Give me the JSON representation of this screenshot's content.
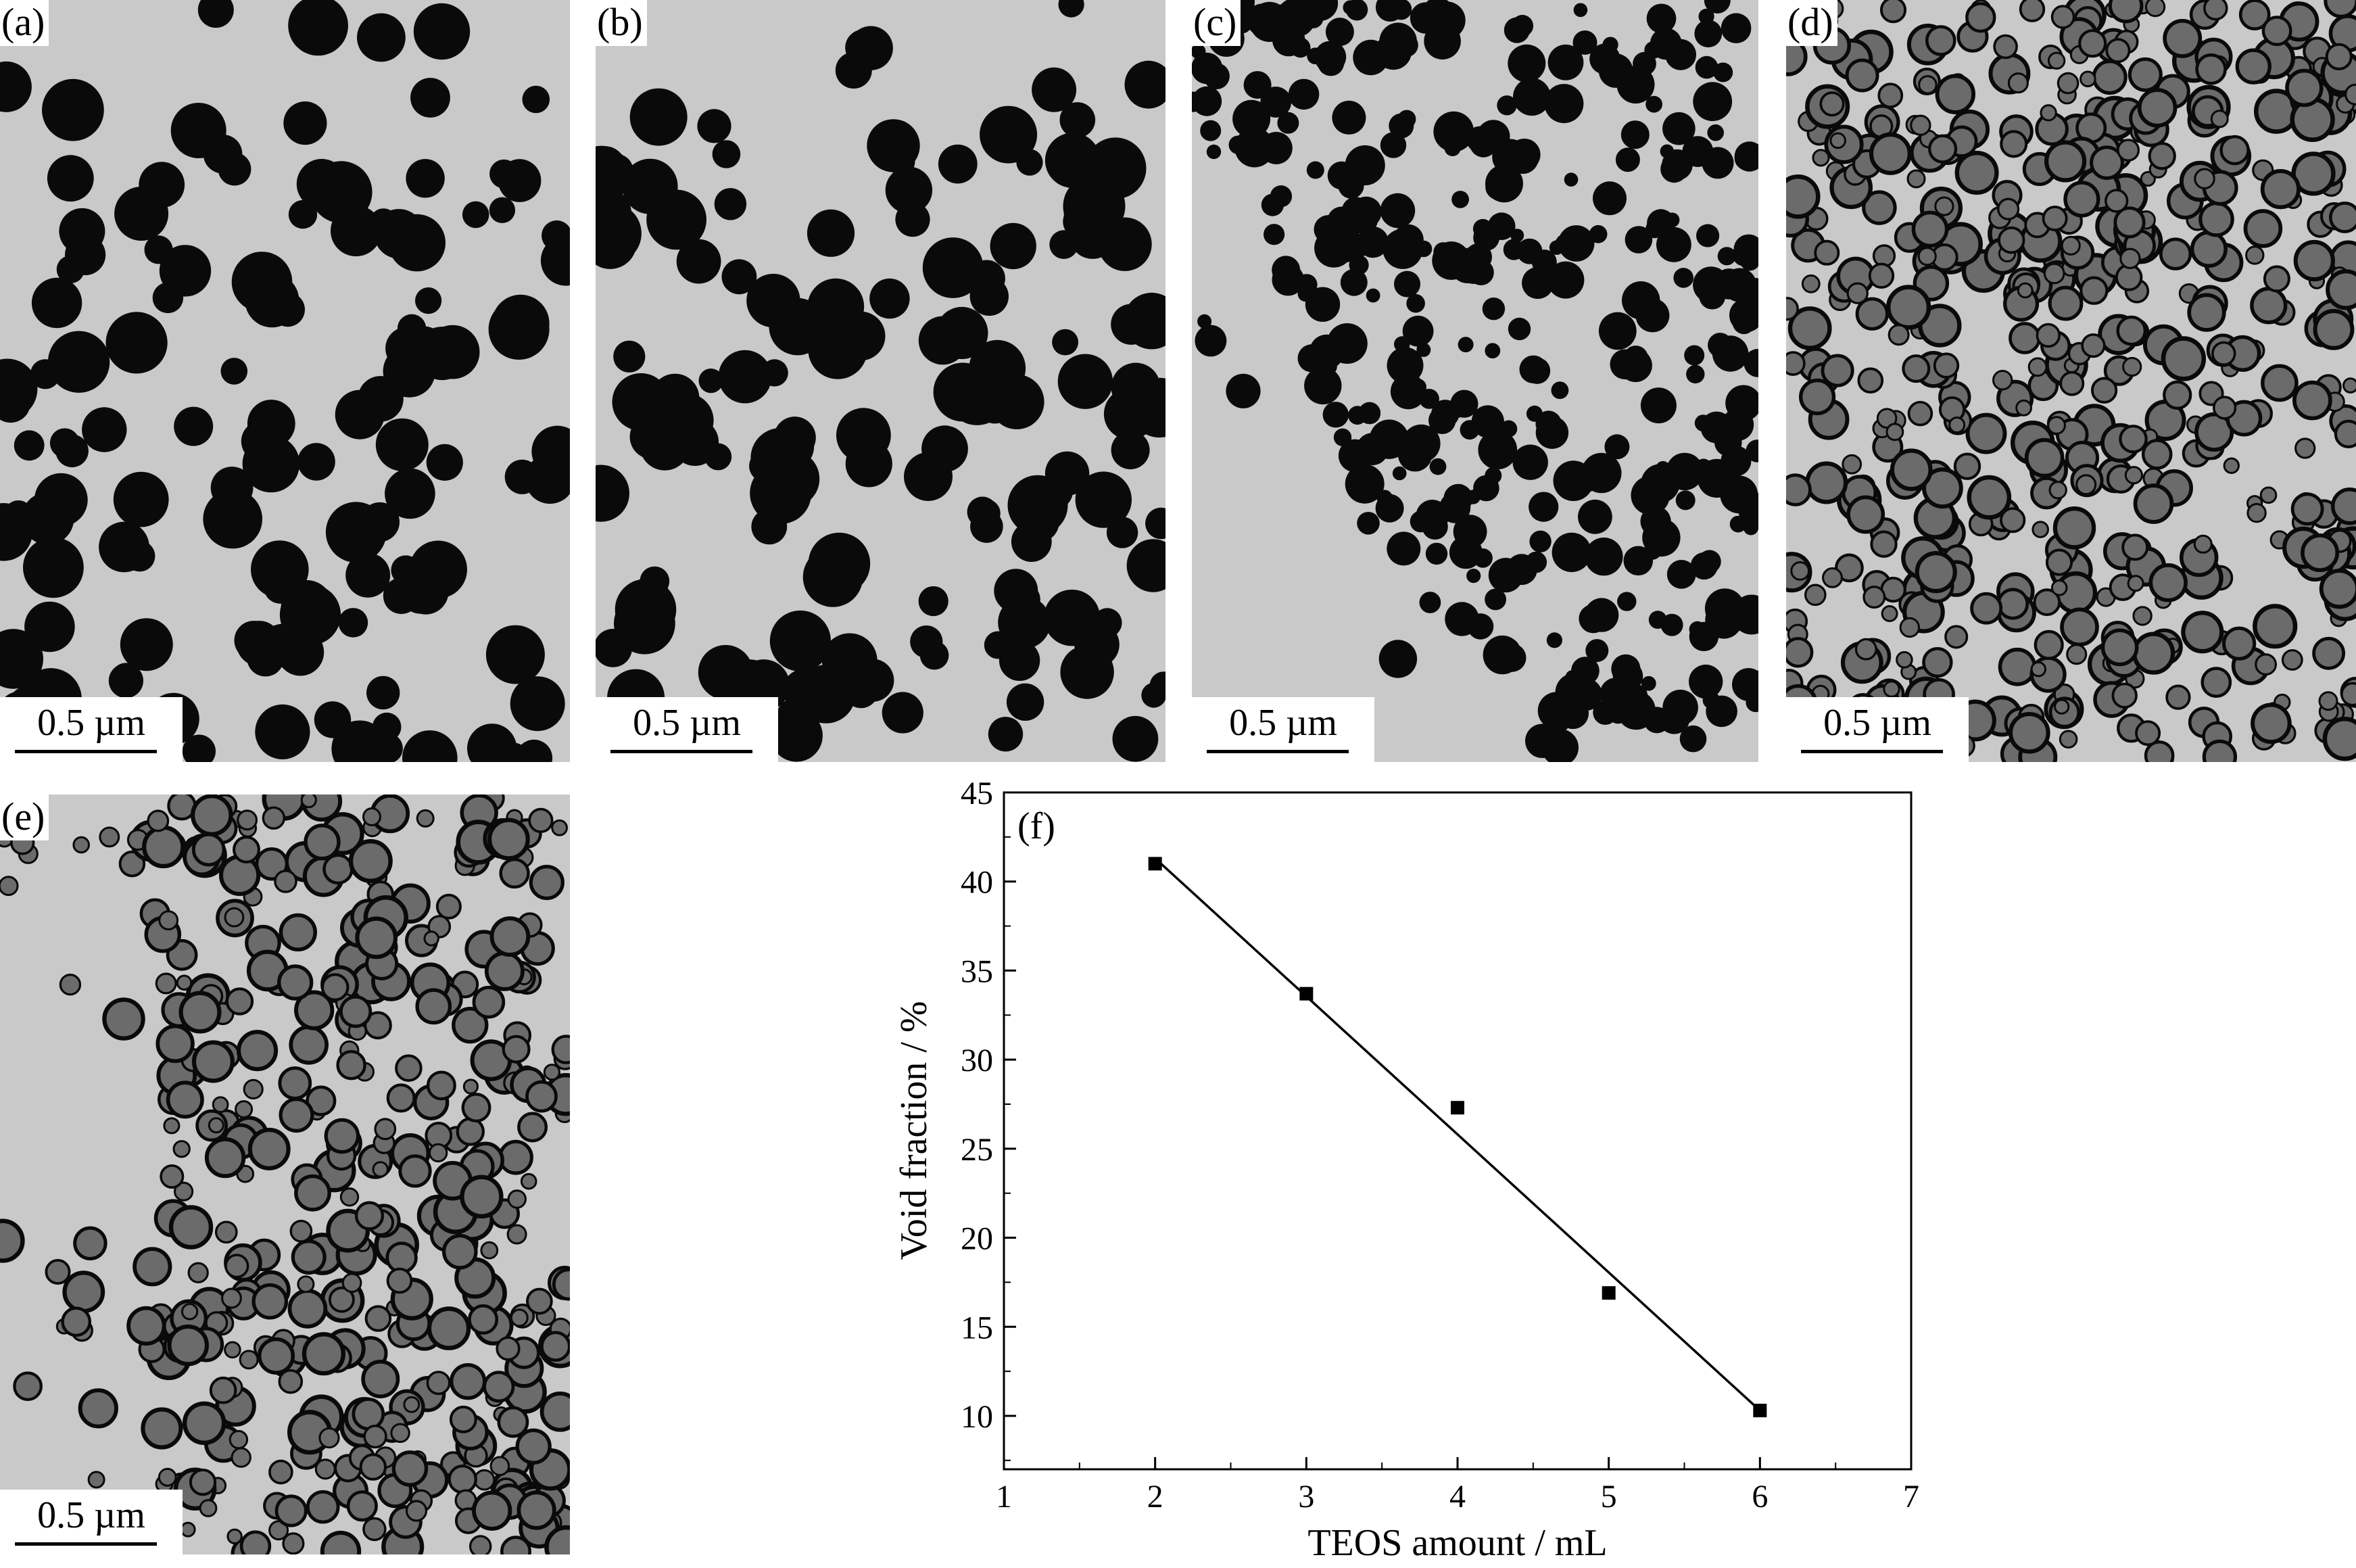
{
  "figure": {
    "panels": [
      {
        "id": "a",
        "label": "(a)",
        "scale_bar": "0.5 µm",
        "tone": "solid"
      },
      {
        "id": "b",
        "label": "(b)",
        "scale_bar": "0.5 µm",
        "tone": "solid"
      },
      {
        "id": "c",
        "label": "(c)",
        "scale_bar": "0.5 µm",
        "tone": "dense"
      },
      {
        "id": "d",
        "label": "(d)",
        "scale_bar": "0.5 µm",
        "tone": "hollow"
      },
      {
        "id": "e",
        "label": "(e)",
        "scale_bar": "0.5 µm",
        "tone": "hollow"
      }
    ],
    "colors": {
      "particle": "#0a0a0a",
      "background": "#c9c9c9",
      "hollow_center": "#6b6b6b"
    }
  },
  "chart_data": {
    "type": "scatter",
    "panel_label": "(f)",
    "title": "",
    "xlabel": "TEOS amount / mL",
    "ylabel": "Void fraction / %",
    "xlim": [
      1,
      7
    ],
    "ylim": [
      7,
      45
    ],
    "x_ticks": [
      1,
      2,
      3,
      4,
      5,
      6,
      7
    ],
    "y_ticks": [
      10,
      15,
      20,
      25,
      30,
      35,
      40,
      45
    ],
    "grid": false,
    "series": [
      {
        "marker": "square",
        "x": [
          2,
          3,
          4,
          5,
          6
        ],
        "y": [
          41.0,
          33.7,
          27.3,
          16.9,
          10.3
        ]
      }
    ],
    "fit_line": {
      "x": [
        2,
        6
      ],
      "y": [
        41.3,
        10.3
      ]
    }
  }
}
